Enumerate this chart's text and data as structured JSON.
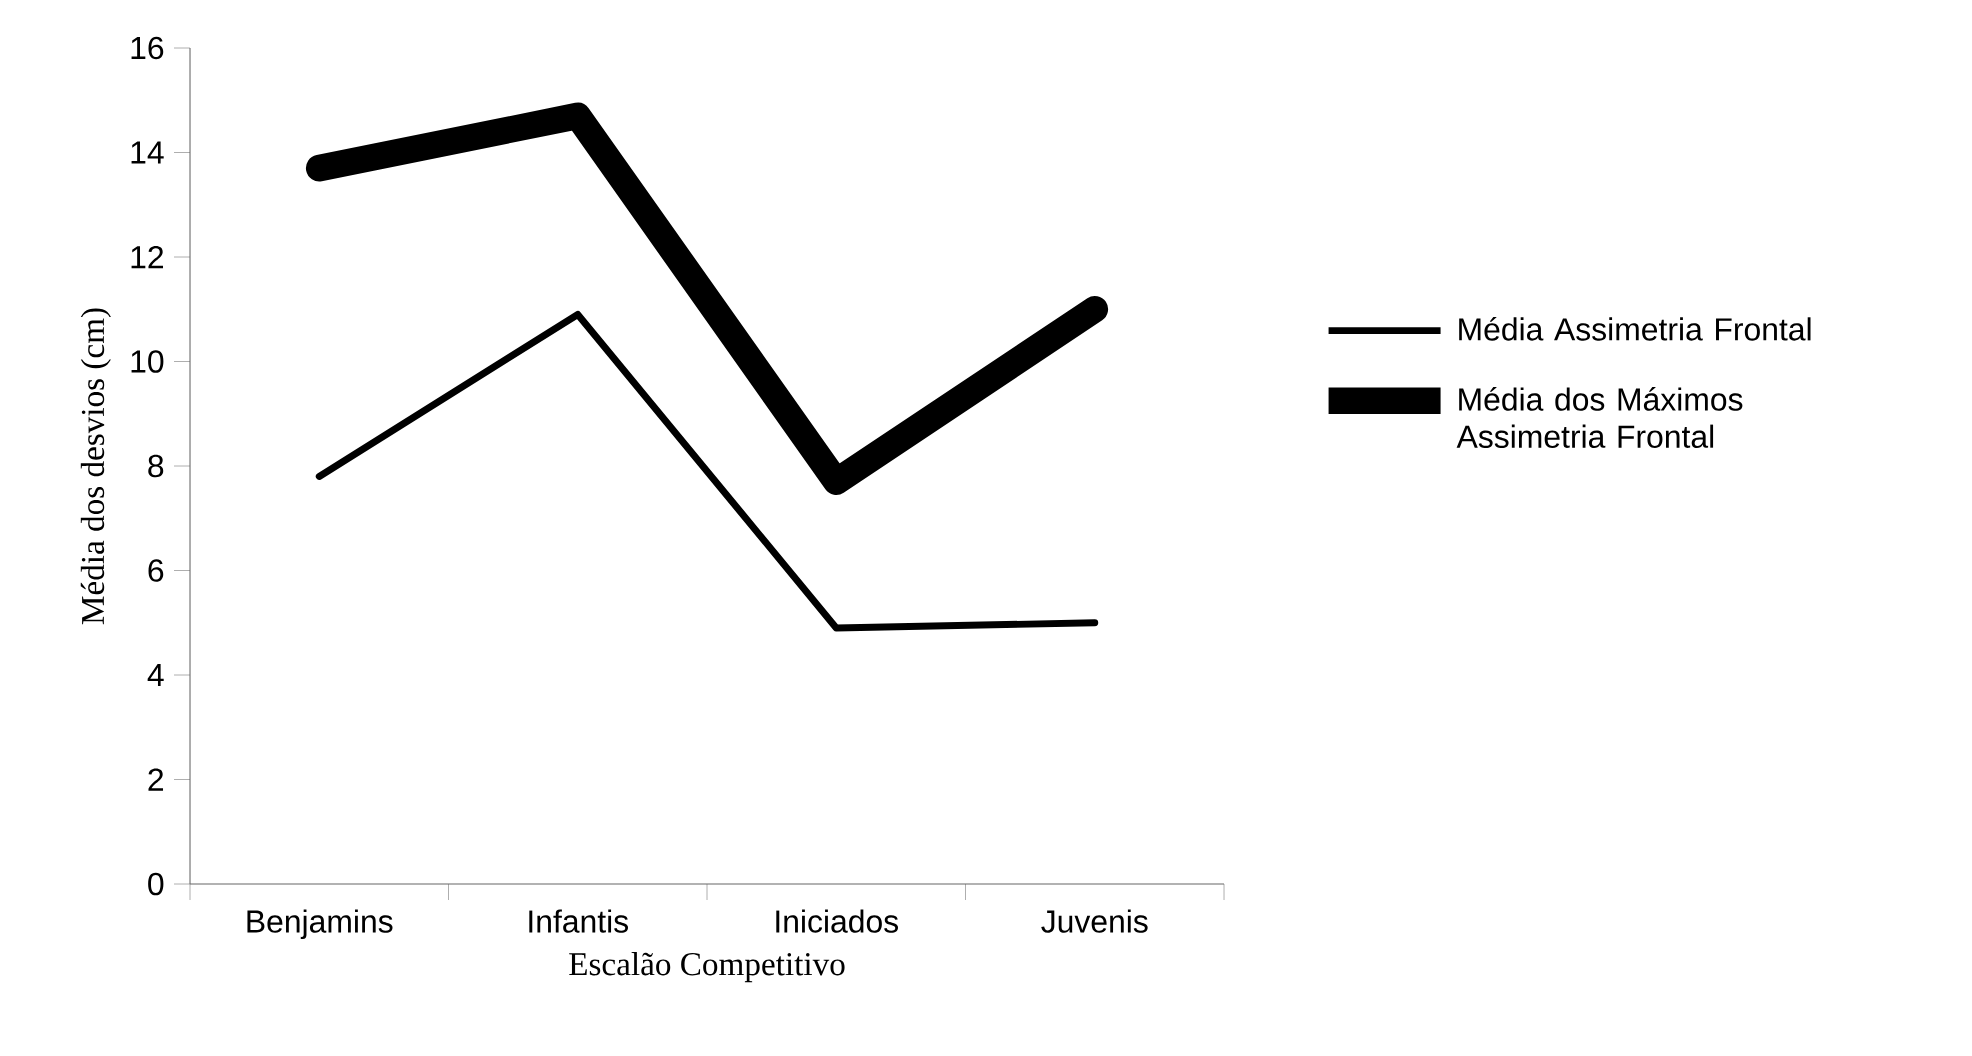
{
  "chart_data": {
    "type": "line",
    "xlabel": "Escalão Competitivo",
    "ylabel": "Média dos desvios (cm)",
    "categories": [
      "Benjamins",
      "Infantis",
      "Iniciados",
      "Juvenis"
    ],
    "series": [
      {
        "name": "Média Assimetria Frontal",
        "color": "#000000",
        "values": [
          7.8,
          10.9,
          4.9,
          5.0
        ]
      },
      {
        "name": "Média dos Máximos Assimetria Frontal",
        "color": "#000000",
        "values": [
          13.7,
          14.7,
          7.7,
          11.0
        ]
      }
    ],
    "ylim": [
      0,
      16
    ],
    "yticks": [
      0,
      2,
      4,
      6,
      8,
      10,
      12,
      14,
      16
    ],
    "grid": false,
    "legend": "right",
    "marker": "none",
    "line_style": "solid"
  }
}
